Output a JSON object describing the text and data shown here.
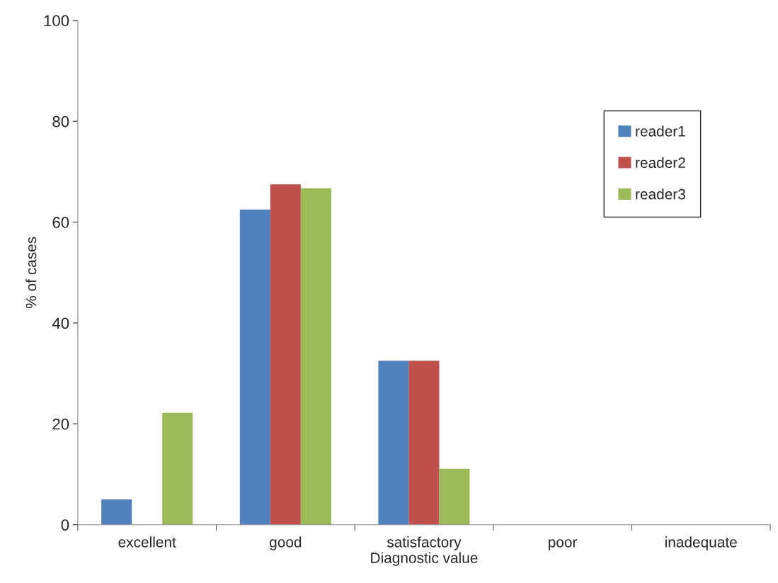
{
  "chart_data": {
    "type": "bar",
    "xlabel": "Diagnostic value",
    "ylabel": "% of cases",
    "categories": [
      "excellent",
      "good",
      "satisfactory",
      "poor",
      "inadequate"
    ],
    "series": [
      {
        "name": "reader1",
        "color": "#4f81bd",
        "values": [
          5,
          62.5,
          32.5,
          0,
          0
        ]
      },
      {
        "name": "reader2",
        "color": "#c0504d",
        "values": [
          0,
          67.5,
          32.5,
          0,
          0
        ]
      },
      {
        "name": "reader3",
        "color": "#9bbb59",
        "values": [
          22.2,
          66.7,
          11.1,
          0,
          0
        ]
      }
    ],
    "ylim": [
      0,
      100
    ],
    "yticks": [
      0,
      20,
      40,
      60,
      80,
      100
    ],
    "grid": false,
    "legend": "top right"
  }
}
